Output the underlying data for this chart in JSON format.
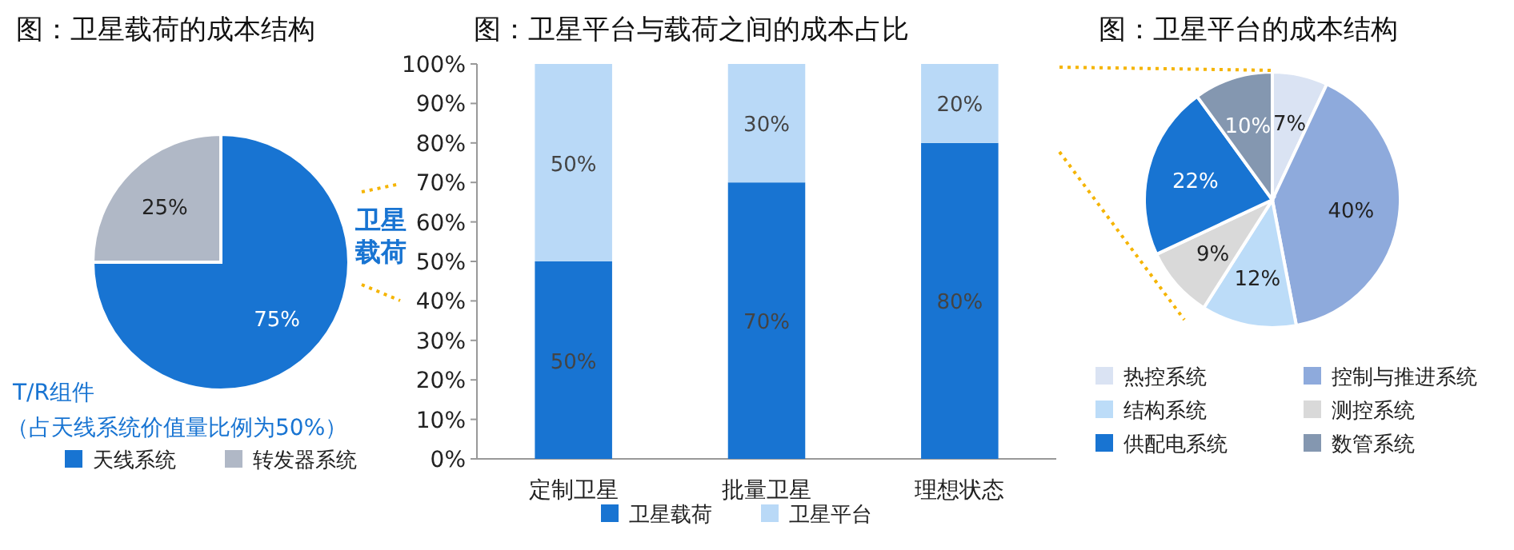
{
  "chart_data": [
    {
      "type": "pie",
      "title": "图：卫星载荷的成本结构",
      "categories": [
        "天线系统",
        "转发器系统"
      ],
      "values": [
        75,
        25
      ],
      "colors": [
        "#1874d2",
        "#b0b8c6"
      ],
      "value_labels": [
        "75%",
        "25%"
      ],
      "legend": "bottom",
      "annotations": [
        "卫星载荷",
        "T/R组件",
        "（占天线系统价值量比例为50%）"
      ]
    },
    {
      "type": "bar",
      "title": "图：卫星平台与载荷之间的成本占比",
      "categories": [
        "定制卫星",
        "批量卫星",
        "理想状态"
      ],
      "stacked": true,
      "legend": "bottom",
      "grid": false,
      "ylim": [
        0,
        100
      ],
      "yticks": [
        {
          "value": 0,
          "label": "0%"
        },
        {
          "value": 10,
          "label": "10%"
        },
        {
          "value": 20,
          "label": "20%"
        },
        {
          "value": 30,
          "label": "30%"
        },
        {
          "value": 40,
          "label": "40%"
        },
        {
          "value": 50,
          "label": "50%"
        },
        {
          "value": 60,
          "label": "60%"
        },
        {
          "value": 70,
          "label": "70%"
        },
        {
          "value": 80,
          "label": "80%"
        },
        {
          "value": 90,
          "label": "90%"
        },
        {
          "value": 100,
          "label": "100%"
        }
      ],
      "series": [
        {
          "name": "卫星载荷",
          "color": "#1874d2",
          "values": [
            50,
            70,
            80
          ],
          "value_labels": [
            "50%",
            "70%",
            "80%"
          ]
        },
        {
          "name": "卫星平台",
          "color": "#b9d9f7",
          "values": [
            50,
            30,
            20
          ],
          "value_labels": [
            "50%",
            "30%",
            "20%"
          ]
        }
      ]
    },
    {
      "type": "pie",
      "title": "图：卫星平台的成本结构",
      "categories": [
        "热控系统",
        "控制与推进系统",
        "结构系统",
        "测控系统",
        "供配电系统",
        "数管系统"
      ],
      "values": [
        7,
        40,
        12,
        9,
        22,
        10
      ],
      "colors": [
        "#dae3f3",
        "#8eaadc",
        "#bcdcf8",
        "#d9d9d9",
        "#1874d2",
        "#8497b0"
      ],
      "value_labels": [
        "7%",
        "40%",
        "12%",
        "9%",
        "22%",
        "10%"
      ],
      "legend": "bottom"
    }
  ]
}
